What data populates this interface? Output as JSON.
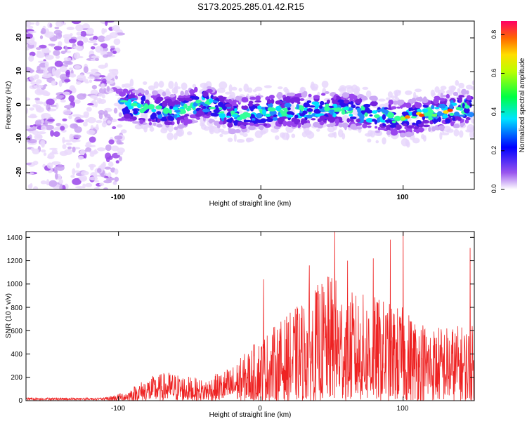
{
  "title": "S173.2025.285.01.42.R15",
  "chart_data": [
    {
      "type": "heatmap",
      "title": "S173.2025.285.01.42.R15",
      "xlabel": "Height of straight line (km)",
      "ylabel": "Frequency (Hz)",
      "xlim": [
        -165,
        150
      ],
      "ylim": [
        -25,
        25
      ],
      "xticks": [
        -100,
        0,
        100
      ],
      "xtick_labels": [
        "-100",
        "0",
        "100"
      ],
      "yticks": [
        -20,
        -10,
        0,
        10,
        20
      ],
      "ytick_labels": [
        "-20",
        "-10",
        "0",
        "10",
        "20"
      ],
      "colorbar": {
        "label": "Normalized spectral amplitude",
        "range": [
          0,
          0.87
        ],
        "ticks": [
          0.0,
          0.2,
          0.4,
          0.6,
          0.8
        ],
        "tick_labels": [
          "0.0",
          "0.2",
          "0.4",
          "0.6",
          "0.8"
        ]
      },
      "band_center_hz": [
        {
          "x": -95,
          "f": 0
        },
        {
          "x": -60,
          "f": -2
        },
        {
          "x": -40,
          "f": 1
        },
        {
          "x": -20,
          "f": -3
        },
        {
          "x": 0,
          "f": -2
        },
        {
          "x": 50,
          "f": -1
        },
        {
          "x": 100,
          "f": -4
        },
        {
          "x": 140,
          "f": -1
        }
      ]
    },
    {
      "type": "line",
      "xlabel": "Height of straight line (km)",
      "ylabel": "SNR (10 * v/v)",
      "xlim": [
        -165,
        150
      ],
      "ylim": [
        0,
        1450
      ],
      "xticks": [
        -100,
        0,
        100
      ],
      "xtick_labels": [
        "-100",
        "0",
        "100"
      ],
      "yticks": [
        0,
        200,
        400,
        600,
        800,
        1000,
        1200,
        1400
      ],
      "ytick_labels": [
        "0",
        "200",
        "400",
        "600",
        "800",
        "1000",
        "1200",
        "1400"
      ],
      "series": [
        {
          "name": "SNR",
          "color": "#ee2222",
          "envelope": [
            {
              "x": -165,
              "y": 20
            },
            {
              "x": -110,
              "y": 25
            },
            {
              "x": -95,
              "y": 80
            },
            {
              "x": -80,
              "y": 200
            },
            {
              "x": -65,
              "y": 250
            },
            {
              "x": -40,
              "y": 180
            },
            {
              "x": -20,
              "y": 300
            },
            {
              "x": 0,
              "y": 550
            },
            {
              "x": 20,
              "y": 750
            },
            {
              "x": 40,
              "y": 1000
            },
            {
              "x": 50,
              "y": 1100
            },
            {
              "x": 60,
              "y": 950
            },
            {
              "x": 80,
              "y": 900
            },
            {
              "x": 100,
              "y": 800
            },
            {
              "x": 120,
              "y": 650
            },
            {
              "x": 150,
              "y": 650
            }
          ],
          "peaks": [
            {
              "x": 2,
              "y": 1040
            },
            {
              "x": 34,
              "y": 1160
            },
            {
              "x": 52,
              "y": 1450
            },
            {
              "x": 61,
              "y": 1200
            },
            {
              "x": 79,
              "y": 1220
            },
            {
              "x": 91,
              "y": 1380
            },
            {
              "x": 100,
              "y": 1450
            },
            {
              "x": 147,
              "y": 1310
            }
          ]
        }
      ]
    }
  ]
}
